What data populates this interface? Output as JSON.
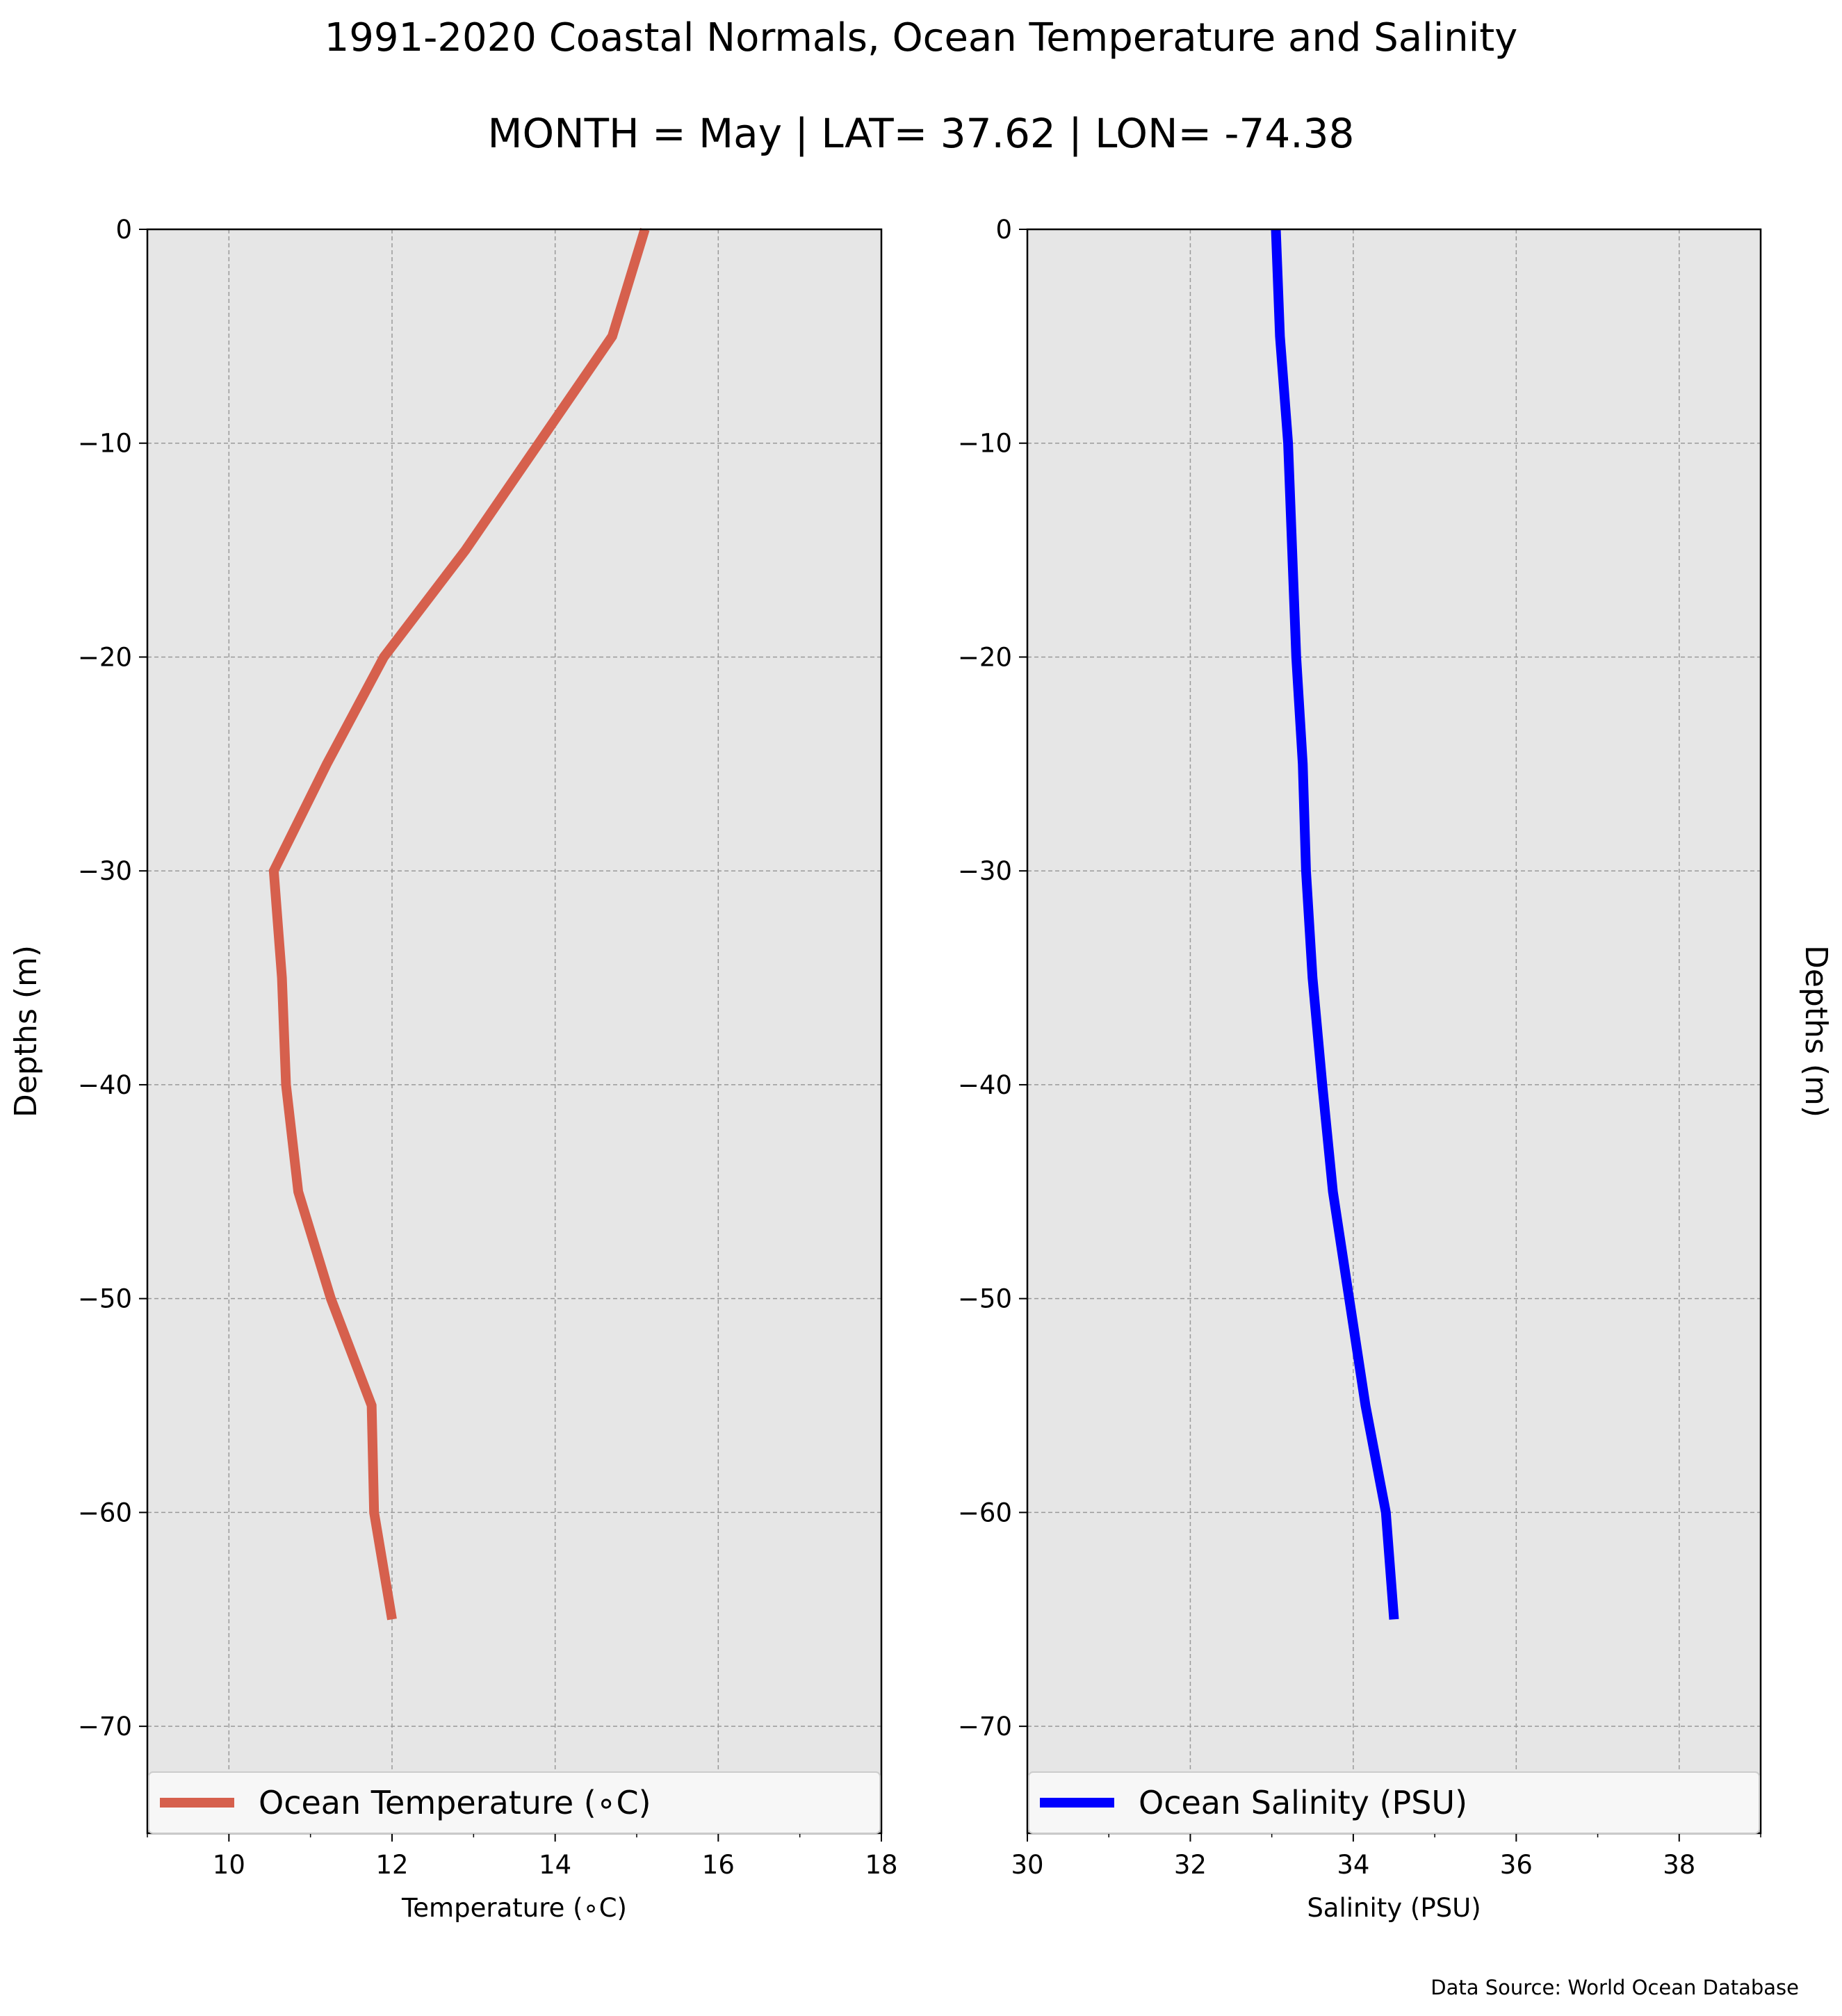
{
  "title": "1991-2020 Coastal Normals, Ocean Temperature and Salinity",
  "subtitle": "MONTH = May | LAT= 37.62 | LON= -74.38",
  "source_note": "Data Source: World Ocean Database",
  "chart_data": [
    {
      "type": "line",
      "title": "",
      "xlabel": "Temperature ($^\\circ$C)",
      "xlabel_display": "Temperature (∘C)",
      "ylabel": "Depths (m)",
      "xlim": [
        9,
        18
      ],
      "ylim": [
        -75,
        0
      ],
      "x_ticks": [
        "10",
        "12",
        "14",
        "16",
        "18"
      ],
      "y_ticks": [
        "0",
        "−10",
        "−20",
        "−30",
        "−40",
        "−50",
        "−60",
        "−70"
      ],
      "grid": true,
      "legend_position": "bottom",
      "series": [
        {
          "name": "Ocean Temperature (∘C)",
          "color": "#d6604d",
          "depth": [
            0,
            -5,
            -10,
            -15,
            -20,
            -25,
            -30,
            -35,
            -40,
            -45,
            -50,
            -55,
            -60,
            -65
          ],
          "values": [
            15.1,
            14.7,
            13.8,
            12.9,
            11.9,
            11.2,
            10.55,
            10.65,
            10.7,
            10.85,
            11.25,
            11.75,
            11.78,
            12.0
          ]
        }
      ]
    },
    {
      "type": "line",
      "title": "",
      "xlabel": "Salinity (PSU)",
      "ylabel": "Depths (m)",
      "xlim": [
        30,
        39
      ],
      "ylim": [
        -75,
        0
      ],
      "x_ticks": [
        "30",
        "32",
        "34",
        "36",
        "38"
      ],
      "y_ticks": [
        "0",
        "−10",
        "−20",
        "−30",
        "−40",
        "−50",
        "−60",
        "−70"
      ],
      "grid": true,
      "legend_position": "bottom",
      "series": [
        {
          "name": "Ocean Salinity (PSU)",
          "color": "#0000ff",
          "depth": [
            0,
            -5,
            -10,
            -15,
            -20,
            -25,
            -30,
            -35,
            -40,
            -45,
            -50,
            -55,
            -60,
            -65
          ],
          "values": [
            33.05,
            33.1,
            33.2,
            33.25,
            33.3,
            33.38,
            33.42,
            33.5,
            33.62,
            33.75,
            33.95,
            34.15,
            34.4,
            34.5
          ]
        }
      ]
    }
  ],
  "colors": {
    "plot_bg": "#e6e6e6",
    "grid": "#9a9a9a",
    "legend_bg": "#f7f7f7"
  }
}
